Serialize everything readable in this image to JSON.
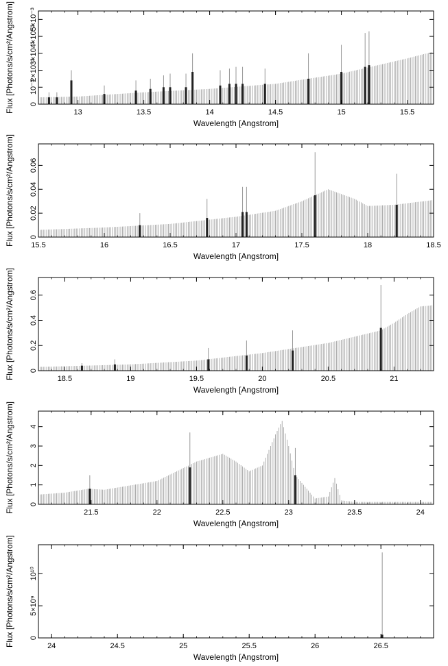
{
  "colors": {
    "axis": "#000000",
    "continuum": "#9a9a9a",
    "line": "#222222"
  },
  "chart_data": [
    {
      "type": "bar",
      "xlabel": "Wavelength [Angstrom]",
      "ylabel": "Flux [Photons/s/cm²/Angstrom]",
      "xlim": [
        12.7,
        15.7
      ],
      "ylim": [
        0,
        0.0055
      ],
      "x_ticks": [
        13,
        13.5,
        14,
        14.5,
        15,
        15.5
      ],
      "x_tick_labels": [
        "13",
        "13.5",
        "14",
        "14.5",
        "15",
        "15.5"
      ],
      "y_ticks": [
        0,
        0.001,
        0.002,
        0.003,
        0.004,
        0.005
      ],
      "y_tick_labels": [
        "0",
        "10⁻³",
        "2×10⁻³",
        "3×10⁻³",
        "4×10⁻³",
        "5×10⁻³"
      ],
      "continuum": [
        [
          12.7,
          0.0004
        ],
        [
          13.0,
          0.00045
        ],
        [
          13.5,
          0.0007
        ],
        [
          14.0,
          0.0009
        ],
        [
          14.5,
          0.0012
        ],
        [
          15.0,
          0.0018
        ],
        [
          15.5,
          0.0027
        ],
        [
          15.7,
          0.0031
        ]
      ],
      "lines": [
        {
          "x": 12.78,
          "y": 0.0004,
          "err": 0.0007
        },
        {
          "x": 12.84,
          "y": 0.0004,
          "err": 0.0007
        },
        {
          "x": 12.95,
          "y": 0.0014,
          "err": 0.002
        },
        {
          "x": 13.2,
          "y": 0.0006,
          "err": 0.0011
        },
        {
          "x": 13.44,
          "y": 0.0008,
          "err": 0.0014
        },
        {
          "x": 13.55,
          "y": 0.0009,
          "err": 0.0015
        },
        {
          "x": 13.65,
          "y": 0.001,
          "err": 0.0017
        },
        {
          "x": 13.7,
          "y": 0.001,
          "err": 0.0018
        },
        {
          "x": 13.82,
          "y": 0.001,
          "err": 0.0018
        },
        {
          "x": 13.87,
          "y": 0.0019,
          "err": 0.003
        },
        {
          "x": 14.08,
          "y": 0.0011,
          "err": 0.002
        },
        {
          "x": 14.15,
          "y": 0.0012,
          "err": 0.0021
        },
        {
          "x": 14.2,
          "y": 0.0012,
          "err": 0.0022
        },
        {
          "x": 14.25,
          "y": 0.0012,
          "err": 0.0022
        },
        {
          "x": 14.42,
          "y": 0.0012,
          "err": 0.0021
        },
        {
          "x": 14.75,
          "y": 0.0015,
          "err": 0.003
        },
        {
          "x": 15.0,
          "y": 0.0019,
          "err": 0.0035
        },
        {
          "x": 15.18,
          "y": 0.0022,
          "err": 0.0042
        },
        {
          "x": 15.21,
          "y": 0.0023,
          "err": 0.0043
        }
      ]
    },
    {
      "type": "bar",
      "xlabel": "Wavelength [Angstrom]",
      "ylabel": "Flux [Photons/s/cm²/Angstrom]",
      "xlim": [
        15.5,
        18.5
      ],
      "ylim": [
        0,
        0.078
      ],
      "x_ticks": [
        15.5,
        16,
        16.5,
        17,
        17.5,
        18,
        18.5
      ],
      "x_tick_labels": [
        "15.5",
        "16",
        "16.5",
        "17",
        "17.5",
        "18",
        "18.5"
      ],
      "y_ticks": [
        0,
        0.02,
        0.04,
        0.06
      ],
      "y_tick_labels": [
        "0",
        "0.02",
        "0.04",
        "0.06"
      ],
      "continuum": [
        [
          15.5,
          0.006
        ],
        [
          16.0,
          0.008
        ],
        [
          16.5,
          0.011
        ],
        [
          17.0,
          0.017
        ],
        [
          17.3,
          0.022
        ],
        [
          17.5,
          0.03
        ],
        [
          17.7,
          0.04
        ],
        [
          17.9,
          0.032
        ],
        [
          18.0,
          0.026
        ],
        [
          18.2,
          0.027
        ],
        [
          18.5,
          0.031
        ]
      ],
      "lines": [
        {
          "x": 16.27,
          "y": 0.01,
          "err": 0.02
        },
        {
          "x": 16.78,
          "y": 0.016,
          "err": 0.032
        },
        {
          "x": 17.05,
          "y": 0.021,
          "err": 0.042
        },
        {
          "x": 17.08,
          "y": 0.021,
          "err": 0.042
        },
        {
          "x": 17.6,
          "y": 0.035,
          "err": 0.071
        },
        {
          "x": 18.22,
          "y": 0.027,
          "err": 0.053
        }
      ]
    },
    {
      "type": "bar",
      "xlabel": "Wavelength [Angstrom]",
      "ylabel": "Flux [Photons/s/cm²/Angstrom]",
      "xlim": [
        18.3,
        21.3
      ],
      "ylim": [
        0,
        0.74
      ],
      "x_ticks": [
        18.5,
        19,
        19.5,
        20,
        20.5,
        21
      ],
      "x_tick_labels": [
        "18.5",
        "19",
        "19.5",
        "20",
        "20.5",
        "21"
      ],
      "y_ticks": [
        0,
        0.2,
        0.4,
        0.6
      ],
      "y_tick_labels": [
        "0",
        "0.2",
        "0.4",
        "0.6"
      ],
      "continuum": [
        [
          18.3,
          0.03
        ],
        [
          18.5,
          0.035
        ],
        [
          19.0,
          0.05
        ],
        [
          19.5,
          0.08
        ],
        [
          20.0,
          0.14
        ],
        [
          20.5,
          0.22
        ],
        [
          20.9,
          0.32
        ],
        [
          21.0,
          0.38
        ],
        [
          21.1,
          0.45
        ],
        [
          21.2,
          0.51
        ],
        [
          21.3,
          0.52
        ]
      ],
      "lines": [
        {
          "x": 18.63,
          "y": 0.04,
          "err": 0.06
        },
        {
          "x": 18.88,
          "y": 0.05,
          "err": 0.09
        },
        {
          "x": 19.59,
          "y": 0.09,
          "err": 0.18
        },
        {
          "x": 19.88,
          "y": 0.12,
          "err": 0.24
        },
        {
          "x": 20.23,
          "y": 0.16,
          "err": 0.32
        },
        {
          "x": 20.9,
          "y": 0.34,
          "err": 0.68
        }
      ]
    },
    {
      "type": "bar",
      "xlabel": "Wavelength [Angstrom]",
      "ylabel": "Flux [Photons/s/cm²/Angstrom]",
      "xlim": [
        21.1,
        24.1
      ],
      "ylim": [
        0,
        4.8
      ],
      "x_ticks": [
        21.5,
        22,
        22.5,
        23,
        23.5,
        24
      ],
      "x_tick_labels": [
        "21.5",
        "22",
        "22.5",
        "23",
        "23.5",
        "24"
      ],
      "y_ticks": [
        0,
        1,
        2,
        3,
        4
      ],
      "y_tick_labels": [
        "0",
        "1",
        "2",
        "3",
        "4"
      ],
      "continuum": [
        [
          21.1,
          0.5
        ],
        [
          21.3,
          0.6
        ],
        [
          21.48,
          0.8
        ],
        [
          21.6,
          0.75
        ],
        [
          22.0,
          1.2
        ],
        [
          22.3,
          2.2
        ],
        [
          22.5,
          2.6
        ],
        [
          22.6,
          2.2
        ],
        [
          22.7,
          1.7
        ],
        [
          22.8,
          2.0
        ],
        [
          22.9,
          3.6
        ],
        [
          22.95,
          4.3
        ],
        [
          23.0,
          3.0
        ],
        [
          23.05,
          1.5
        ],
        [
          23.2,
          0.3
        ],
        [
          23.3,
          0.4
        ],
        [
          23.35,
          1.35
        ],
        [
          23.4,
          0.2
        ],
        [
          23.5,
          0.12
        ],
        [
          24.1,
          0.12
        ]
      ],
      "lines": [
        {
          "x": 21.49,
          "y": 0.8,
          "err": 1.5
        },
        {
          "x": 22.25,
          "y": 1.9,
          "err": 3.7
        },
        {
          "x": 23.05,
          "y": 1.5,
          "err": 2.9
        }
      ]
    },
    {
      "type": "bar",
      "xlabel": "Wavelength [Angstrom]",
      "ylabel": "Flux [Photons/s/cm²/Angstrom]",
      "xlim": [
        23.9,
        26.9
      ],
      "ylim": [
        0,
        14500000000
      ],
      "x_ticks": [
        24,
        24.5,
        25,
        25.5,
        26,
        26.5
      ],
      "x_tick_labels": [
        "24",
        "24.5",
        "25",
        "25.5",
        "26",
        "26.5"
      ],
      "y_ticks": [
        0,
        5000000000,
        10000000000
      ],
      "y_tick_labels": [
        "0",
        "5×10⁹",
        "10¹⁰"
      ],
      "continuum": [
        [
          23.9,
          0
        ],
        [
          26.9,
          0
        ]
      ],
      "lines": [
        {
          "x": 26.51,
          "y": 500000000,
          "err": 13300000000
        }
      ]
    }
  ]
}
